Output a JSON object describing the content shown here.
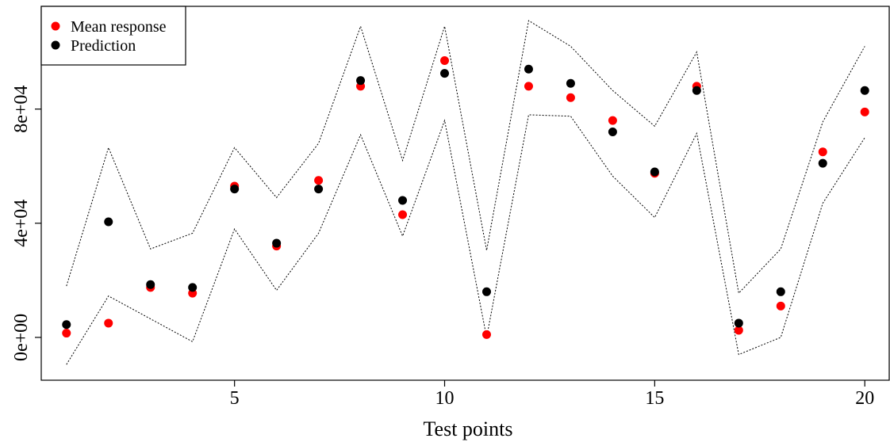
{
  "chart_data": {
    "type": "scatter",
    "xlabel": "Test points",
    "ylabel": "",
    "x": [
      1,
      2,
      3,
      4,
      5,
      6,
      7,
      8,
      9,
      10,
      11,
      12,
      13,
      14,
      15,
      16,
      17,
      18,
      19,
      20
    ],
    "xlim": [
      0.4,
      20.6
    ],
    "ylim": [
      -15000,
      116000
    ],
    "x_ticks": [
      5,
      10,
      15,
      20
    ],
    "y_ticks": [
      0,
      40000,
      80000
    ],
    "y_tick_labels": [
      "0e+00",
      "4e+04",
      "8e+04"
    ],
    "series": [
      {
        "name": "Mean response",
        "color": "#ff0000",
        "marker": "circle",
        "values": [
          1500,
          5000,
          17500,
          15500,
          53000,
          32000,
          55000,
          88000,
          43000,
          97000,
          1000,
          88000,
          84000,
          76000,
          57500,
          88000,
          2500,
          11000,
          65000,
          79000
        ]
      },
      {
        "name": "Prediction",
        "color": "#000000",
        "marker": "circle",
        "values": [
          4500,
          40500,
          18500,
          17500,
          52000,
          33000,
          52000,
          90000,
          48000,
          92500,
          16000,
          94000,
          89000,
          72000,
          58000,
          86500,
          5000,
          16000,
          61000,
          86500
        ]
      }
    ],
    "bands": [
      {
        "style": "dotted",
        "color": "#000000",
        "values": [
          18000,
          66500,
          31000,
          36500,
          66500,
          49000,
          68000,
          109000,
          62000,
          109000,
          30500,
          111000,
          102000,
          86500,
          74000,
          100000,
          15500,
          31000,
          75500,
          102000
        ]
      },
      {
        "style": "dotted",
        "color": "#000000",
        "values": [
          -9500,
          14500,
          6500,
          -1500,
          38000,
          16500,
          36500,
          71000,
          35500,
          76000,
          0,
          78000,
          77500,
          56500,
          42000,
          71500,
          -6000,
          0,
          47000,
          70000
        ]
      }
    ],
    "legend": {
      "position": "top-left",
      "entries": [
        {
          "label": "Mean response",
          "color": "#ff0000"
        },
        {
          "label": "Prediction",
          "color": "#000000"
        }
      ]
    },
    "grid": false
  }
}
